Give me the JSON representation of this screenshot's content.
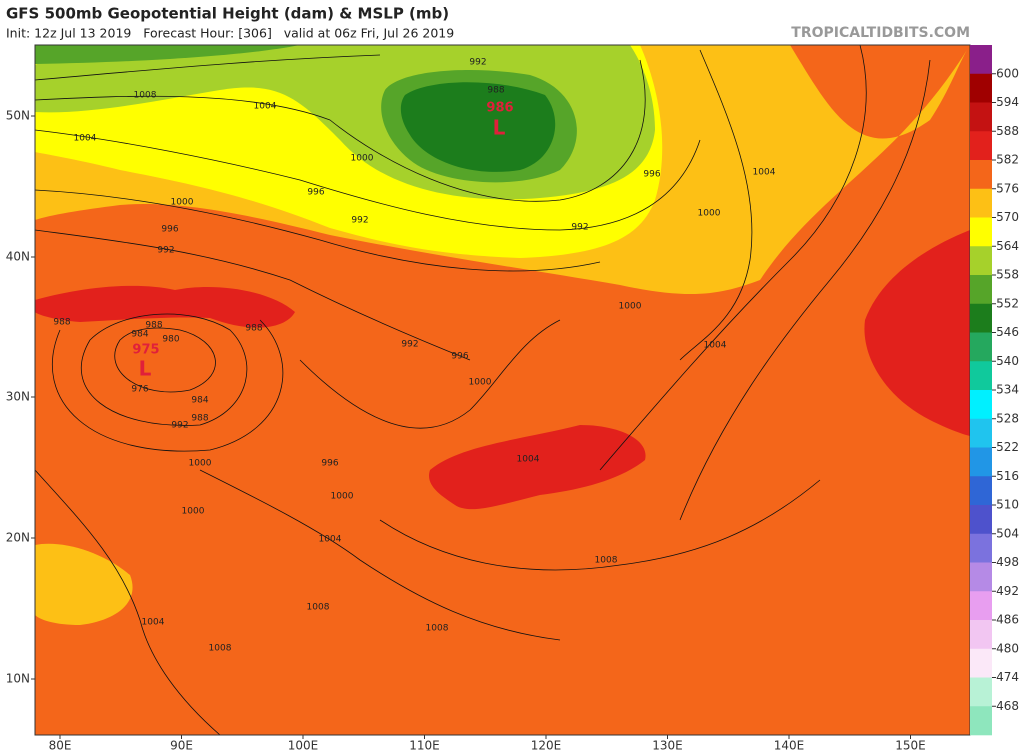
{
  "header": {
    "title": "GFS 500mb Geopotential Height (dam) & MSLP (mb)",
    "subtitle": "Init: 12z Jul 13 2019   Forecast Hour: [306]   valid at 06z Fri, Jul 26 2019",
    "site": "TROPICALTIDBITS.COM"
  },
  "map": {
    "lat_labels": [
      "50N",
      "40N",
      "30N",
      "20N",
      "10N"
    ],
    "lon_labels": [
      "80E",
      "90E",
      "100E",
      "110E",
      "120E",
      "130E",
      "140E",
      "150E"
    ],
    "lows": [
      {
        "value": 986,
        "symbol": "L"
      },
      {
        "value": 975,
        "symbol": "L"
      }
    ],
    "contour_labels": [
      992,
      988,
      1008,
      1004,
      1004,
      1000,
      996,
      996,
      1004,
      1000,
      992,
      1000,
      992,
      996,
      992,
      988,
      988,
      984,
      980,
      988,
      992,
      996,
      1000,
      976,
      984,
      988,
      992,
      1000,
      1004,
      1000,
      996,
      1004,
      1000,
      1000,
      1004,
      1008,
      1004,
      1008,
      1008,
      1008
    ]
  },
  "colorbar": {
    "labels": [
      600,
      594,
      588,
      582,
      576,
      570,
      564,
      558,
      552,
      546,
      540,
      534,
      528,
      522,
      516,
      510,
      504,
      498,
      492,
      486,
      480,
      474,
      468
    ],
    "colors": [
      "#8a1f8a",
      "#a00000",
      "#c41212",
      "#e2211c",
      "#f4661a",
      "#fdc015",
      "#ffff00",
      "#a6d12b",
      "#56a529",
      "#1c7d1c",
      "#25a85e",
      "#10c99c",
      "#00f0ff",
      "#20c4ee",
      "#2196e6",
      "#2f66d6",
      "#4e52cc",
      "#7b72de",
      "#b58ae6",
      "#e89ef0",
      "#f2c6f2",
      "#fbe8f8",
      "#b8f2d6",
      "#8ee6bd"
    ]
  }
}
